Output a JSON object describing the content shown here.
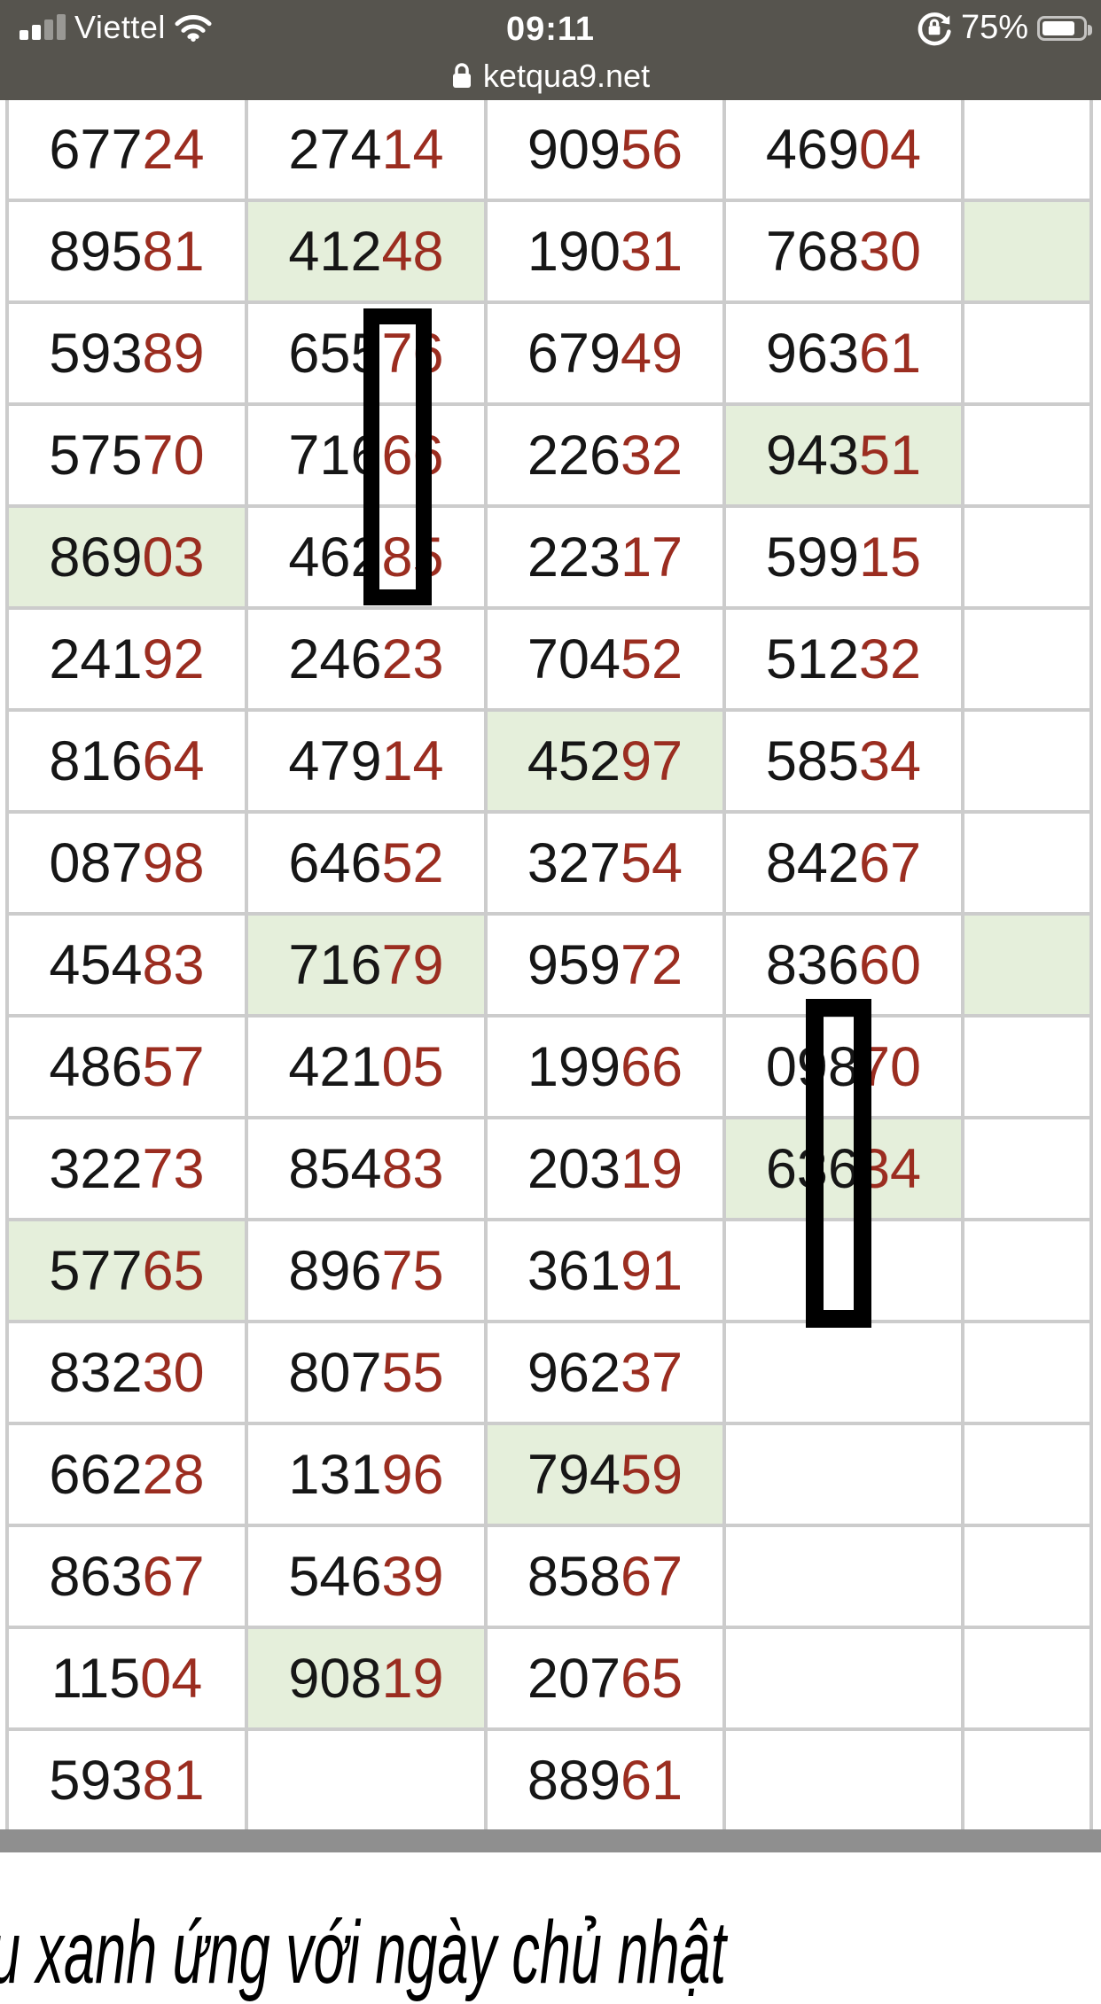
{
  "status_bar": {
    "carrier": "Viettel",
    "time": "09:11",
    "battery": "75%",
    "url": "ketqua9.net",
    "icons": [
      "cellular-signal-icon",
      "wifi-icon",
      "rotation-lock-icon",
      "battery-icon",
      "lock-icon"
    ]
  },
  "colors": {
    "red_digit": "#9b2d20",
    "green_cell": "#e5efdb",
    "grid_line": "#cccccc",
    "status_bar_bg": "#56544e",
    "bottom_band": "#8f8f8f"
  },
  "footer_note": "u xanh ứng với ngày chủ nhật",
  "table": {
    "rows": [
      {
        "cells": [
          {
            "black": "677",
            "red": "24",
            "green": false
          },
          {
            "black": "274",
            "red": "14",
            "green": false
          },
          {
            "black": "909",
            "red": "56",
            "green": false
          },
          {
            "black": "469",
            "red": "04",
            "green": false
          },
          {
            "black": "",
            "red": "",
            "green": false
          }
        ]
      },
      {
        "cells": [
          {
            "black": "895",
            "red": "81",
            "green": false
          },
          {
            "black": "412",
            "red": "48",
            "green": true
          },
          {
            "black": "190",
            "red": "31",
            "green": false
          },
          {
            "black": "768",
            "red": "30",
            "green": false
          },
          {
            "black": "",
            "red": "",
            "green": true
          }
        ]
      },
      {
        "cells": [
          {
            "black": "593",
            "red": "89",
            "green": false
          },
          {
            "black": "655",
            "red": "76",
            "green": false
          },
          {
            "black": "679",
            "red": "49",
            "green": false
          },
          {
            "black": "963",
            "red": "61",
            "green": false
          },
          {
            "black": "",
            "red": "",
            "green": false
          }
        ]
      },
      {
        "cells": [
          {
            "black": "575",
            "red": "70",
            "green": false
          },
          {
            "black": "716",
            "red": "66",
            "green": false
          },
          {
            "black": "226",
            "red": "32",
            "green": false
          },
          {
            "black": "943",
            "red": "51",
            "green": true
          },
          {
            "black": "",
            "red": "",
            "green": false
          }
        ]
      },
      {
        "cells": [
          {
            "black": "869",
            "red": "03",
            "green": true
          },
          {
            "black": "462",
            "red": "85",
            "green": false
          },
          {
            "black": "223",
            "red": "17",
            "green": false
          },
          {
            "black": "599",
            "red": "15",
            "green": false
          },
          {
            "black": "",
            "red": "",
            "green": false
          }
        ]
      },
      {
        "cells": [
          {
            "black": "241",
            "red": "92",
            "green": false
          },
          {
            "black": "246",
            "red": "23",
            "green": false
          },
          {
            "black": "704",
            "red": "52",
            "green": false
          },
          {
            "black": "512",
            "red": "32",
            "green": false
          },
          {
            "black": "",
            "red": "",
            "green": false
          }
        ]
      },
      {
        "cells": [
          {
            "black": "816",
            "red": "64",
            "green": false
          },
          {
            "black": "479",
            "red": "14",
            "green": false
          },
          {
            "black": "452",
            "red": "97",
            "green": true
          },
          {
            "black": "585",
            "red": "34",
            "green": false
          },
          {
            "black": "",
            "red": "",
            "green": false
          }
        ]
      },
      {
        "cells": [
          {
            "black": "087",
            "red": "98",
            "green": false
          },
          {
            "black": "646",
            "red": "52",
            "green": false
          },
          {
            "black": "327",
            "red": "54",
            "green": false
          },
          {
            "black": "842",
            "red": "67",
            "green": false
          },
          {
            "black": "",
            "red": "",
            "green": false
          }
        ]
      },
      {
        "cells": [
          {
            "black": "454",
            "red": "83",
            "green": false
          },
          {
            "black": "716",
            "red": "79",
            "green": true
          },
          {
            "black": "959",
            "red": "72",
            "green": false
          },
          {
            "black": "836",
            "red": "60",
            "green": false
          },
          {
            "black": "",
            "red": "",
            "green": true
          }
        ]
      },
      {
        "cells": [
          {
            "black": "486",
            "red": "57",
            "green": false
          },
          {
            "black": "421",
            "red": "05",
            "green": false
          },
          {
            "black": "199",
            "red": "66",
            "green": false
          },
          {
            "black": "098",
            "red": "70",
            "green": false
          },
          {
            "black": "",
            "red": "",
            "green": false
          }
        ]
      },
      {
        "cells": [
          {
            "black": "322",
            "red": "73",
            "green": false
          },
          {
            "black": "854",
            "red": "83",
            "green": false
          },
          {
            "black": "203",
            "red": "19",
            "green": false
          },
          {
            "black": "636",
            "red": "34",
            "green": true
          },
          {
            "black": "",
            "red": "",
            "green": false
          }
        ]
      },
      {
        "cells": [
          {
            "black": "577",
            "red": "65",
            "green": true
          },
          {
            "black": "896",
            "red": "75",
            "green": false
          },
          {
            "black": "361",
            "red": "91",
            "green": false
          },
          {
            "black": "",
            "red": "",
            "green": false
          },
          {
            "black": "",
            "red": "",
            "green": false
          }
        ]
      },
      {
        "cells": [
          {
            "black": "832",
            "red": "30",
            "green": false
          },
          {
            "black": "807",
            "red": "55",
            "green": false
          },
          {
            "black": "962",
            "red": "37",
            "green": false
          },
          {
            "black": "",
            "red": "",
            "green": false
          },
          {
            "black": "",
            "red": "",
            "green": false
          }
        ]
      },
      {
        "cells": [
          {
            "black": "662",
            "red": "28",
            "green": false
          },
          {
            "black": "131",
            "red": "96",
            "green": false
          },
          {
            "black": "794",
            "red": "59",
            "green": true
          },
          {
            "black": "",
            "red": "",
            "green": false
          },
          {
            "black": "",
            "red": "",
            "green": false
          }
        ]
      },
      {
        "cells": [
          {
            "black": "863",
            "red": "67",
            "green": false
          },
          {
            "black": "546",
            "red": "39",
            "green": false
          },
          {
            "black": "858",
            "red": "67",
            "green": false
          },
          {
            "black": "",
            "red": "",
            "green": false
          },
          {
            "black": "",
            "red": "",
            "green": false
          }
        ]
      },
      {
        "cells": [
          {
            "black": "115",
            "red": "04",
            "green": false
          },
          {
            "black": "908",
            "red": "19",
            "green": true
          },
          {
            "black": "207",
            "red": "65",
            "green": false
          },
          {
            "black": "",
            "red": "",
            "green": false
          },
          {
            "black": "",
            "red": "",
            "green": false
          }
        ]
      },
      {
        "cells": [
          {
            "black": "593",
            "red": "81",
            "green": false
          },
          {
            "black": "",
            "red": "",
            "green": false
          },
          {
            "black": "889",
            "red": "61",
            "green": false
          },
          {
            "black": "",
            "red": "",
            "green": false
          },
          {
            "black": "",
            "red": "",
            "green": false
          }
        ]
      }
    ]
  }
}
